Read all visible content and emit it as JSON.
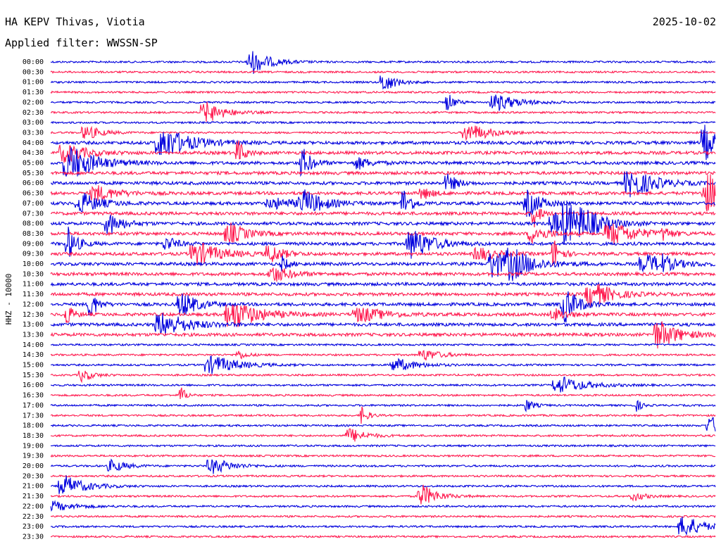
{
  "header": {
    "station": "HA KEPV Thivas, Viotia",
    "filter": "Applied filter: WWSSN-SP",
    "date": "2025-10-02"
  },
  "chart_data": {
    "type": "helicorder",
    "ylabel": "HHZ - 10000",
    "colors": [
      "#0000dd",
      "#ff1a4f"
    ],
    "rows": [
      "00:00",
      "00:30",
      "01:00",
      "01:30",
      "02:00",
      "02:30",
      "03:00",
      "03:30",
      "04:00",
      "04:30",
      "05:00",
      "05:30",
      "06:00",
      "06:30",
      "07:00",
      "07:30",
      "08:00",
      "08:30",
      "09:00",
      "09:30",
      "10:00",
      "10:30",
      "11:00",
      "11:30",
      "12:00",
      "12:30",
      "13:00",
      "13:30",
      "14:00",
      "14:30",
      "15:00",
      "15:30",
      "16:00",
      "16:30",
      "17:00",
      "17:30",
      "18:00",
      "18:30",
      "19:00",
      "19:30",
      "20:00",
      "20:30",
      "21:00",
      "21:30",
      "22:00",
      "22:30",
      "23:00",
      "23:30"
    ]
  }
}
